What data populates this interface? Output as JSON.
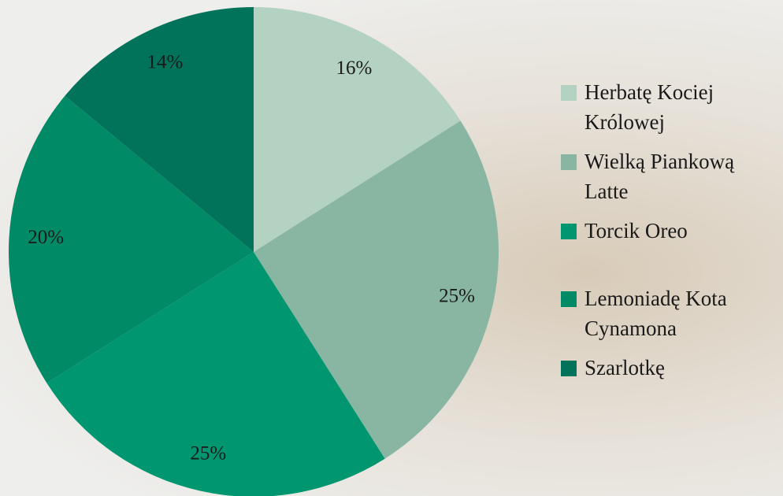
{
  "chart_data": {
    "type": "pie",
    "categories": [
      "Herbatę Kociej Królowej",
      "Wielką Piankową Latte",
      "Torcik Oreo",
      "Lemoniadę Kota Cynamona",
      "Szarlotkę"
    ],
    "values": [
      16,
      25,
      25,
      20,
      14
    ],
    "value_labels": [
      "16%",
      "25%",
      "25%",
      "20%",
      "14%"
    ],
    "colors": [
      "#b4d2c2",
      "#89b6a2",
      "#00966f",
      "#008a66",
      "#00735a"
    ],
    "legend": "right"
  }
}
